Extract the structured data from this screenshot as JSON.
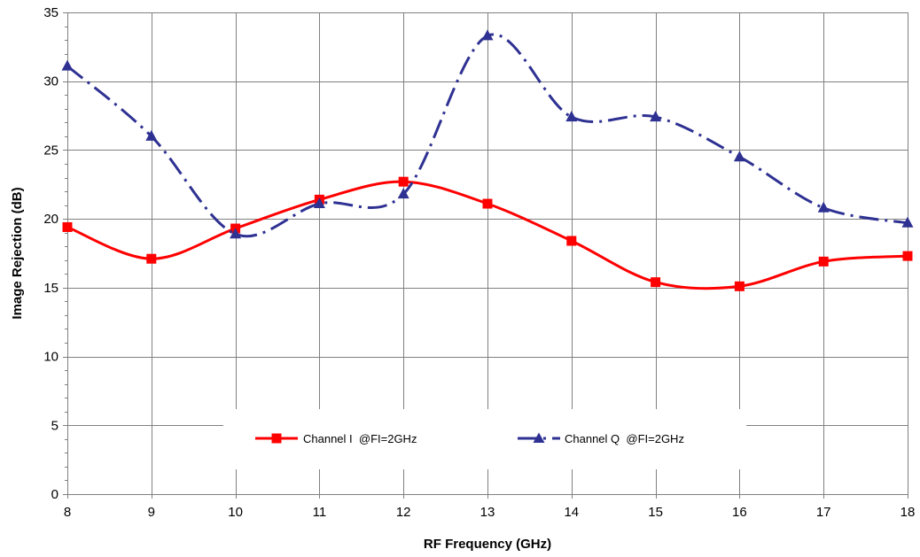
{
  "chart_data": {
    "type": "line",
    "title": "",
    "xlabel": "RF Frequency (GHz)",
    "ylabel": "Image Rejection (dB)",
    "x": [
      8,
      9,
      10,
      11,
      12,
      13,
      14,
      15,
      16,
      17,
      18
    ],
    "xlim": [
      8,
      18
    ],
    "ylim": [
      0,
      35
    ],
    "x_ticks": [
      "8",
      "9",
      "10",
      "11",
      "12",
      "13",
      "14",
      "15",
      "16",
      "17",
      "18"
    ],
    "y_ticks": [
      "0",
      "5",
      "10",
      "15",
      "20",
      "25",
      "30",
      "35"
    ],
    "grid": true,
    "legend_position": "bottom-center",
    "series": [
      {
        "name": "Channel I  @FI=2GHz",
        "color": "#ff0000",
        "marker": "square",
        "line_style": "solid",
        "values": [
          19.4,
          17.1,
          19.3,
          21.4,
          22.7,
          21.1,
          18.4,
          15.4,
          15.1,
          16.9,
          17.3
        ]
      },
      {
        "name": "Channel Q  @FI=2GHz",
        "color": "#2e3192",
        "marker": "triangle",
        "line_style": "dash-dot",
        "values": [
          31.1,
          26.0,
          18.9,
          21.1,
          21.8,
          33.3,
          27.4,
          27.4,
          24.5,
          20.8,
          19.7
        ]
      }
    ]
  }
}
